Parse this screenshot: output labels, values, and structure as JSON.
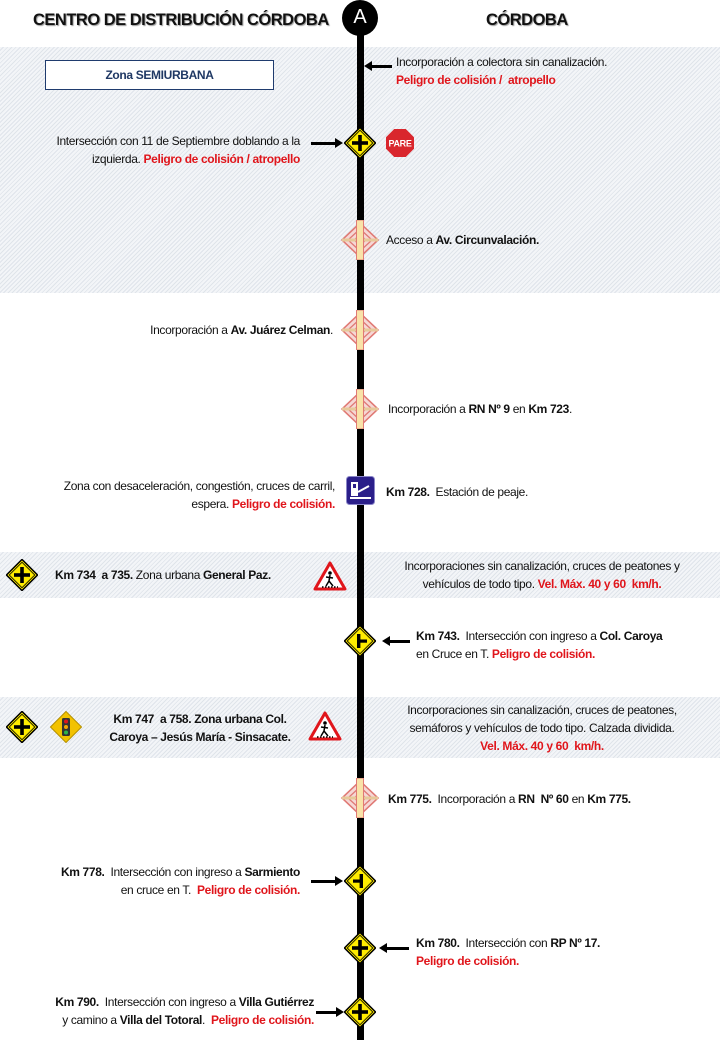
{
  "header": {
    "origin": "CENTRO DE DISTRIBUCIÓN CÓRDOBA",
    "destination": "CÓRDOBA",
    "start_marker": "A"
  },
  "zone_label": "Zona SEMIURBANA",
  "colors": {
    "danger": "#e0151b",
    "zone_text": "#1f3864",
    "sign_yellow": "#ffec00",
    "toll_blue": "#2b1f8a"
  },
  "items": [
    {
      "icon": "arrow-left",
      "text": [
        [
          "n",
          "Incorporación a colectora sin canalización."
        ],
        [
          "br",
          ""
        ],
        [
          "r",
          "Peligro de colisión /  atropello"
        ]
      ]
    },
    {
      "icon": "intersection-cross-sign, stop-sign",
      "stop_label": "PARE",
      "text": [
        [
          "n",
          "Intersección con 11 de Septiembre doblando a la"
        ],
        [
          "br",
          ""
        ],
        [
          "n",
          "izquierda. "
        ],
        [
          "r",
          "Peligro de colisión / atropello"
        ]
      ]
    },
    {
      "icon": "interchange-sign",
      "text": [
        [
          "n",
          "Acceso a "
        ],
        [
          "b",
          "Av. Circunvalación."
        ]
      ]
    },
    {
      "icon": "interchange-sign",
      "text": [
        [
          "n",
          "Incorporación a "
        ],
        [
          "b",
          "Av. Juárez Celman"
        ],
        [
          "n",
          "."
        ]
      ]
    },
    {
      "icon": "interchange-sign",
      "text": [
        [
          "n",
          "Incorporación a "
        ],
        [
          "b",
          "RN Nº 9"
        ],
        [
          "n",
          " en "
        ],
        [
          "b",
          "Km 723"
        ],
        [
          "n",
          "."
        ]
      ]
    },
    {
      "icon": "toll-sign",
      "text": [
        [
          "n",
          "Zona con desaceleración, congestión, cruces de carril,"
        ],
        [
          "br",
          ""
        ],
        [
          "n",
          "espera. "
        ],
        [
          "r",
          "Peligro de colisión."
        ]
      ]
    },
    {
      "icon": "toll-sign",
      "text": [
        [
          "b",
          "Km 728."
        ],
        [
          "n",
          "  Estación de peaje."
        ]
      ]
    },
    {
      "icon": "intersection-cross-sign, pedestrian-crossing-sign",
      "text": [
        [
          "b",
          "Km 734  a 735."
        ],
        [
          "n",
          " Zona urbana "
        ],
        [
          "b",
          "General Paz."
        ]
      ]
    },
    {
      "text": [
        [
          "n",
          "Incorporaciones sin canalización, cruces de peatones y"
        ],
        [
          "br",
          ""
        ],
        [
          "n",
          "vehículos de todo tipo. "
        ],
        [
          "r",
          "Vel. Máx. 40 y 60  km/h."
        ]
      ]
    },
    {
      "icon": "t-intersection-sign",
      "text": [
        [
          "b",
          "Km 743."
        ],
        [
          "n",
          "  Intersección con ingreso a "
        ],
        [
          "b",
          "Col. Caroya"
        ],
        [
          "br",
          ""
        ],
        [
          "n",
          "en Cruce en T. "
        ],
        [
          "r",
          "Peligro de colisión."
        ]
      ]
    },
    {
      "icon": "intersection-cross-sign, traffic-light-sign, pedestrian-crossing-sign",
      "text": [
        [
          "b",
          "Km 747  a 758."
        ],
        [
          "n",
          " Zona urbana "
        ],
        [
          "b",
          "Col."
        ],
        [
          "br",
          ""
        ],
        [
          "b",
          "Caroya – Jesús María - Sinsacate."
        ]
      ]
    },
    {
      "text": [
        [
          "n",
          "Incorporaciones sin canalización, cruces de peatones,"
        ],
        [
          "br",
          ""
        ],
        [
          "n",
          "semáforos y vehículos de todo tipo. Calzada dividida."
        ],
        [
          "br",
          ""
        ],
        [
          "r",
          "Vel. Máx. 40 y 60  km/h."
        ]
      ]
    },
    {
      "icon": "interchange-sign",
      "text": [
        [
          "b",
          "Km 775."
        ],
        [
          "n",
          "  Incorporación a "
        ],
        [
          "b",
          "RN  Nº 60"
        ],
        [
          "n",
          " en "
        ],
        [
          "b",
          "Km 775."
        ]
      ]
    },
    {
      "icon": "t-intersection-sign",
      "text": [
        [
          "b",
          "Km 778."
        ],
        [
          "n",
          "  Intersección con ingreso a "
        ],
        [
          "b",
          "Sarmiento"
        ],
        [
          "br",
          ""
        ],
        [
          "n",
          "en cruce en T.  "
        ],
        [
          "r",
          "Peligro de colisión."
        ]
      ]
    },
    {
      "icon": "intersection-cross-sign",
      "text": [
        [
          "b",
          "Km 780."
        ],
        [
          "n",
          "  Intersección con "
        ],
        [
          "b",
          "RP Nº 17."
        ],
        [
          "br",
          ""
        ],
        [
          "r",
          "Peligro de colisión."
        ]
      ]
    },
    {
      "icon": "intersection-cross-sign",
      "text": [
        [
          "b",
          "Km 790."
        ],
        [
          "n",
          "  Intersección con ingreso a "
        ],
        [
          "b",
          "Villa Gutiérrez"
        ],
        [
          "br",
          ""
        ],
        [
          "n",
          "y camino a "
        ],
        [
          "b",
          "Villa del Totoral"
        ],
        [
          "n",
          ".  "
        ],
        [
          "r",
          "Peligro de colisión."
        ]
      ]
    }
  ]
}
